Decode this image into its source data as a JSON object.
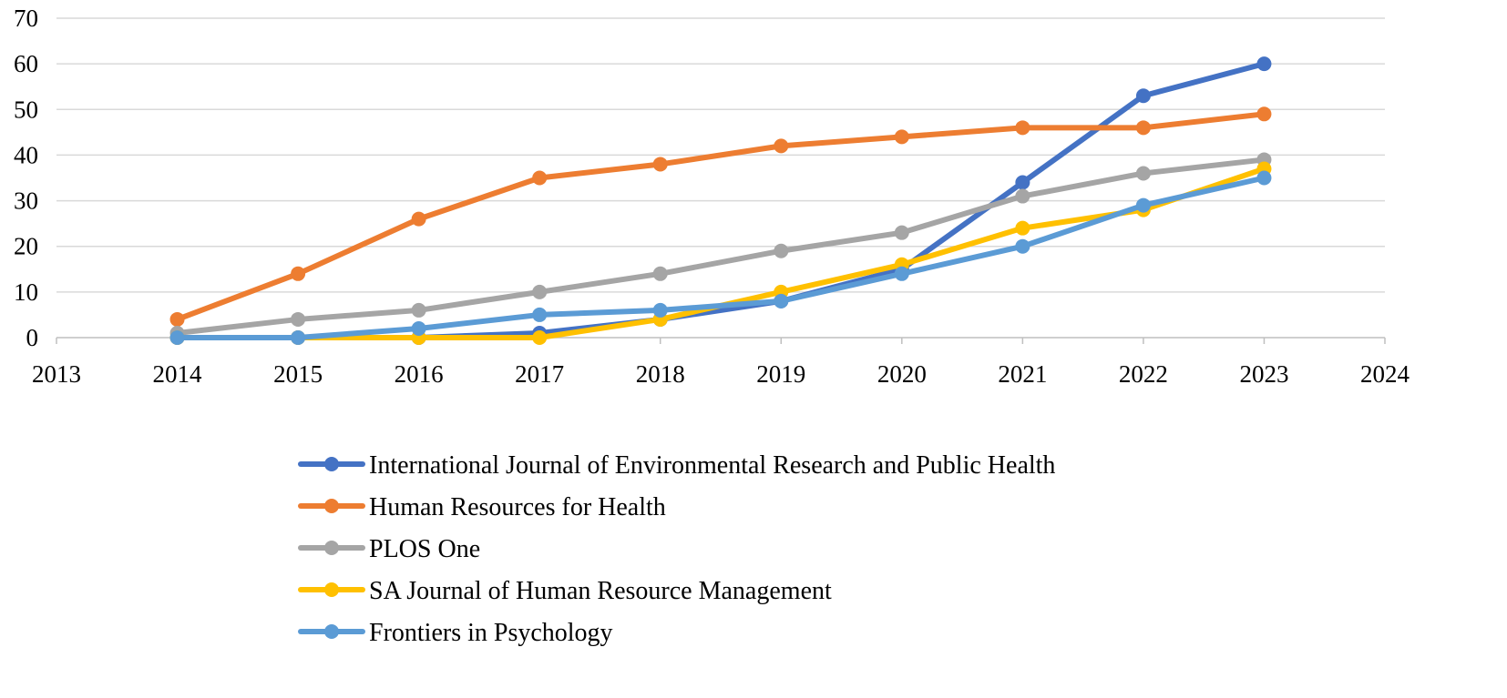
{
  "chart_data": {
    "type": "line",
    "x": [
      2014,
      2015,
      2016,
      2017,
      2018,
      2019,
      2020,
      2021,
      2022,
      2023
    ],
    "xlim": [
      2013,
      2024
    ],
    "ylim": [
      0,
      70
    ],
    "xticks": [
      "2013",
      "2014",
      "2015",
      "2016",
      "2017",
      "2018",
      "2019",
      "2020",
      "2021",
      "2022",
      "2023",
      "2024"
    ],
    "yticks": [
      "0",
      "10",
      "20",
      "30",
      "40",
      "50",
      "60",
      "70"
    ],
    "grid": "horizontal",
    "legend": "bottom",
    "series": [
      {
        "name": "International Journal of Environmental Research and Public Health",
        "color": "#4472C4",
        "values": [
          0,
          0,
          0,
          1,
          4,
          8,
          15,
          34,
          53,
          60
        ]
      },
      {
        "name": "Human Resources for Health",
        "color": "#ED7D31",
        "values": [
          4,
          14,
          26,
          35,
          38,
          42,
          44,
          46,
          46,
          49
        ]
      },
      {
        "name": "PLOS One",
        "color": "#A5A5A5",
        "values": [
          1,
          4,
          6,
          10,
          14,
          19,
          23,
          31,
          36,
          39
        ]
      },
      {
        "name": "SA Journal of Human Resource Management",
        "color": "#FFC000",
        "values": [
          0,
          0,
          0,
          0,
          4,
          10,
          16,
          24,
          28,
          37
        ]
      },
      {
        "name": "Frontiers in Psychology",
        "color": "#5B9BD5",
        "values": [
          0,
          0,
          2,
          5,
          6,
          8,
          14,
          20,
          29,
          35
        ]
      }
    ]
  }
}
